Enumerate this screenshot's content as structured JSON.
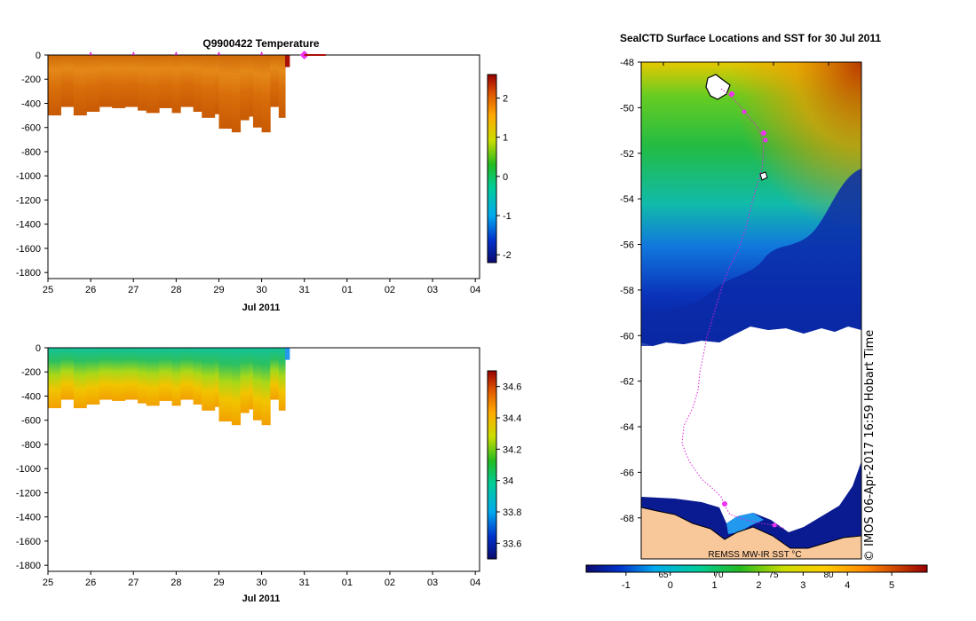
{
  "chart_data": [
    {
      "type": "heatmap",
      "title": "Q9900422  Temperature",
      "xlabel": "Jul 2011",
      "ylabel": "",
      "x_ticks": [
        "25",
        "26",
        "27",
        "28",
        "29",
        "30",
        "31",
        "01",
        "02",
        "03",
        "04"
      ],
      "x_range": [
        25,
        35.1
      ],
      "y_ticks": [
        0,
        -200,
        -400,
        -600,
        -800,
        -1000,
        -1200,
        -1400,
        -1600,
        -1800
      ],
      "ylim": [
        -1850,
        0
      ],
      "colorbar_ticks": [
        2,
        1,
        0,
        -1,
        -2
      ],
      "colorbar_range": [
        -2.2,
        2.6
      ],
      "data_end_day": 30.55,
      "profile_markers_day": [
        26,
        27,
        28,
        29,
        30
      ],
      "current_marker_day": 31,
      "profile_depths": [
        [
          25.0,
          -500
        ],
        [
          25.3,
          -430
        ],
        [
          25.6,
          -500
        ],
        [
          25.9,
          -470
        ],
        [
          26.2,
          -430
        ],
        [
          26.5,
          -440
        ],
        [
          26.8,
          -430
        ],
        [
          27.1,
          -460
        ],
        [
          27.3,
          -480
        ],
        [
          27.6,
          -440
        ],
        [
          27.9,
          -480
        ],
        [
          28.1,
          -430
        ],
        [
          28.4,
          -470
        ],
        [
          28.6,
          -520
        ],
        [
          28.9,
          -490
        ],
        [
          29.0,
          -610
        ],
        [
          29.3,
          -640
        ],
        [
          29.5,
          -540
        ],
        [
          29.7,
          -510
        ],
        [
          29.8,
          -600
        ],
        [
          30.0,
          -640
        ],
        [
          30.2,
          -430
        ],
        [
          30.4,
          -520
        ],
        [
          30.55,
          -100
        ]
      ],
      "temperature_profile": [
        {
          "depth": 0,
          "value": 1.4
        },
        {
          "depth": -150,
          "value": 1.9
        },
        {
          "depth": -300,
          "value": 2.1
        },
        {
          "depth": -450,
          "value": 2.2
        },
        {
          "depth": -650,
          "value": 2.3
        }
      ],
      "colorbar_label": ""
    },
    {
      "type": "heatmap",
      "title": "",
      "xlabel": "Jul 2011",
      "ylabel": "",
      "x_ticks": [
        "25",
        "26",
        "27",
        "28",
        "29",
        "30",
        "31",
        "01",
        "02",
        "03",
        "04"
      ],
      "x_range": [
        25,
        35.1
      ],
      "y_ticks": [
        0,
        -200,
        -400,
        -600,
        -800,
        -1000,
        -1200,
        -1400,
        -1600,
        -1800
      ],
      "ylim": [
        -1850,
        0
      ],
      "colorbar_ticks": [
        34.6,
        34.4,
        34.2,
        34,
        33.8,
        33.6
      ],
      "colorbar_range": [
        33.5,
        34.7
      ],
      "salinity_profile": [
        {
          "depth": 0,
          "value": 34.05
        },
        {
          "depth": -150,
          "value": 34.1
        },
        {
          "depth": -250,
          "value": 34.25
        },
        {
          "depth": -350,
          "value": 34.4
        },
        {
          "depth": -500,
          "value": 34.55
        },
        {
          "depth": -650,
          "value": 34.6
        }
      ]
    },
    {
      "type": "heatmap",
      "title": "SealCTD Surface Locations and SST for 30 Jul 2011",
      "y_ticks": [
        -48,
        -50,
        -52,
        -54,
        -56,
        -58,
        -60,
        -62,
        -64,
        -66,
        -68
      ],
      "ylim": [
        -69.8,
        -48
      ],
      "colorbar_ticks": [
        -1,
        0,
        1,
        2,
        3,
        4,
        5
      ],
      "colorbar_range": [
        -1.9,
        5.8
      ],
      "longitude_ticks": [
        "65",
        "70",
        "75",
        "80"
      ],
      "source_label": "REMSS MW-IR SST °C",
      "credit": "© IMOS 06-Apr-2017 16:59 Hobart Time"
    }
  ],
  "colors": {
    "land": "#f9c89a",
    "track": "#dd22dd",
    "marker": "#ee33ee",
    "ice_edge": "#ffffff"
  }
}
